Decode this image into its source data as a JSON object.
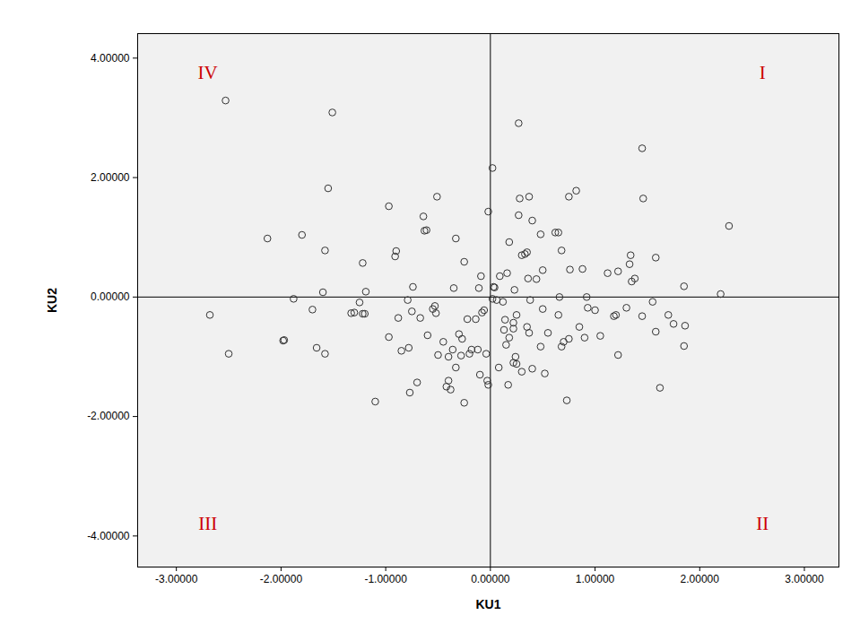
{
  "chart_data": {
    "type": "scatter",
    "x_label": "KU1",
    "y_label": "KU2",
    "marker": "circle_open",
    "color": "#333333",
    "xlim": [
      -3.37,
      3.33
    ],
    "ylim": [
      -4.52,
      4.41
    ],
    "xticks": [
      {
        "value": -3,
        "label": "-3.00000"
      },
      {
        "value": -2,
        "label": "-2.00000"
      },
      {
        "value": -1,
        "label": "-1.00000"
      },
      {
        "value": 0,
        "label": "0.00000"
      },
      {
        "value": 1,
        "label": "1.00000"
      },
      {
        "value": 2,
        "label": "2.00000"
      },
      {
        "value": 3,
        "label": "3.00000"
      }
    ],
    "yticks": [
      {
        "value": -4,
        "label": "-4.00000"
      },
      {
        "value": -2,
        "label": "-2.00000"
      },
      {
        "value": 0,
        "label": "0.00000"
      },
      {
        "value": 2,
        "label": "2.00000"
      },
      {
        "value": 4,
        "label": "4.00000"
      }
    ],
    "grid": false,
    "reference_lines": {
      "x": 0,
      "y": 0
    },
    "annotations": [
      {
        "text": "I",
        "x": 2.6,
        "y": 3.75,
        "color": "#cc0000"
      },
      {
        "text": "II",
        "x": 2.6,
        "y": -3.8,
        "color": "#cc0000"
      },
      {
        "text": "III",
        "x": -2.7,
        "y": -3.8,
        "color": "#cc0000"
      },
      {
        "text": "IV",
        "x": -2.7,
        "y": 3.75,
        "color": "#cc0000"
      }
    ],
    "x": [
      -2.53,
      -1.51,
      -1.55,
      -0.97,
      -0.51,
      -0.64,
      -1.8,
      -2.13,
      -1.58,
      -1.22,
      -0.9,
      -0.91,
      -0.63,
      -0.61,
      -0.33,
      -0.25,
      -0.74,
      -0.35,
      -0.09,
      -0.11,
      -1.6,
      -1.19,
      -1.25,
      0.02,
      0.27,
      0.28,
      0.37,
      0.27,
      0.4,
      -0.02,
      1.45,
      1.46,
      0.75,
      0.82,
      2.28,
      0.62,
      0.65,
      0.88,
      0.76,
      1.12,
      1.22,
      1.33,
      1.34,
      1.35,
      1.38,
      1.58,
      1.85,
      2.2,
      0.35,
      0.33,
      0.3,
      0.44,
      0.36,
      0.18,
      0.5,
      0.48,
      0.68,
      0.09,
      0.23,
      0.16,
      0.04,
      0.66,
      0.92,
      0.03,
      -2.68,
      -2.5,
      -1.97,
      -1.98,
      -1.88,
      -1.7,
      -1.66,
      -1.58,
      -1.33,
      -1.3,
      -1.2,
      -1.1,
      -0.97,
      -0.85,
      -0.79,
      -0.75,
      -0.78,
      -0.77,
      -0.7,
      -0.67,
      -0.6,
      -0.55,
      -0.53,
      -0.52,
      -0.5,
      -0.45,
      -0.42,
      -0.4,
      -0.38,
      -0.36,
      -0.33,
      -0.3,
      -0.28,
      -0.27,
      -0.25,
      -0.22,
      -0.2,
      -0.18,
      -0.14,
      -0.12,
      -0.1,
      -0.08,
      -0.06,
      -0.04,
      -0.03,
      -0.02,
      -0.4,
      -1.22,
      -0.88,
      0.02,
      0.06,
      0.08,
      0.13,
      0.14,
      0.12,
      0.17,
      0.15,
      0.18,
      0.22,
      0.22,
      0.24,
      0.25,
      0.22,
      0.25,
      0.3,
      0.35,
      0.37,
      0.38,
      0.4,
      0.48,
      0.5,
      0.52,
      0.55,
      0.65,
      0.68,
      0.7,
      0.73,
      0.75,
      0.85,
      0.9,
      0.93,
      1.0,
      1.05,
      1.18,
      1.2,
      1.22,
      1.3,
      1.45,
      1.55,
      1.58,
      1.62,
      1.7,
      1.75,
      1.86,
      1.85
    ],
    "y": [
      3.29,
      3.09,
      1.82,
      1.52,
      1.68,
      1.35,
      1.04,
      0.98,
      0.78,
      0.57,
      0.77,
      0.68,
      1.11,
      1.12,
      0.98,
      0.59,
      0.17,
      0.15,
      0.35,
      0.15,
      0.08,
      0.09,
      -0.09,
      2.16,
      2.91,
      1.65,
      1.68,
      1.37,
      1.28,
      1.43,
      2.49,
      1.65,
      1.68,
      1.78,
      1.19,
      1.08,
      1.08,
      0.47,
      0.46,
      0.4,
      0.43,
      0.55,
      0.7,
      0.26,
      0.31,
      0.66,
      0.18,
      0.05,
      0.75,
      0.72,
      0.7,
      0.3,
      0.31,
      0.92,
      0.45,
      1.05,
      0.78,
      0.35,
      0.12,
      0.4,
      0.16,
      0.0,
      0.0,
      0.17,
      -0.3,
      -0.95,
      -0.72,
      -0.73,
      -0.03,
      -0.21,
      -0.85,
      -0.95,
      -0.27,
      -0.26,
      -0.28,
      -1.75,
      -0.67,
      -0.9,
      -0.05,
      -0.24,
      -0.85,
      -1.6,
      -1.43,
      -0.35,
      -0.64,
      -0.2,
      -0.15,
      -0.27,
      -0.97,
      -0.75,
      -1.5,
      -1.4,
      -1.55,
      -0.88,
      -1.18,
      -0.62,
      -0.98,
      -0.7,
      -1.77,
      -0.37,
      -0.95,
      -0.88,
      -0.37,
      -0.88,
      -1.3,
      -0.26,
      -0.22,
      -0.95,
      -1.4,
      -1.47,
      -1.0,
      -0.28,
      -0.35,
      -0.03,
      -0.05,
      -1.18,
      -0.55,
      -0.38,
      -0.08,
      -1.47,
      -0.8,
      -0.68,
      -0.53,
      -1.1,
      -1.0,
      -1.12,
      -0.43,
      -0.3,
      -1.25,
      -0.5,
      -0.6,
      -0.05,
      -1.2,
      -0.83,
      -0.2,
      -1.28,
      -0.6,
      -0.3,
      -0.83,
      -0.75,
      -1.73,
      -0.7,
      -0.5,
      -0.68,
      -0.18,
      -0.22,
      -0.65,
      -0.32,
      -0.3,
      -0.97,
      -0.18,
      -0.32,
      -0.08,
      -0.58,
      -1.52,
      -0.3,
      -0.45,
      -0.48,
      -0.82
    ]
  }
}
